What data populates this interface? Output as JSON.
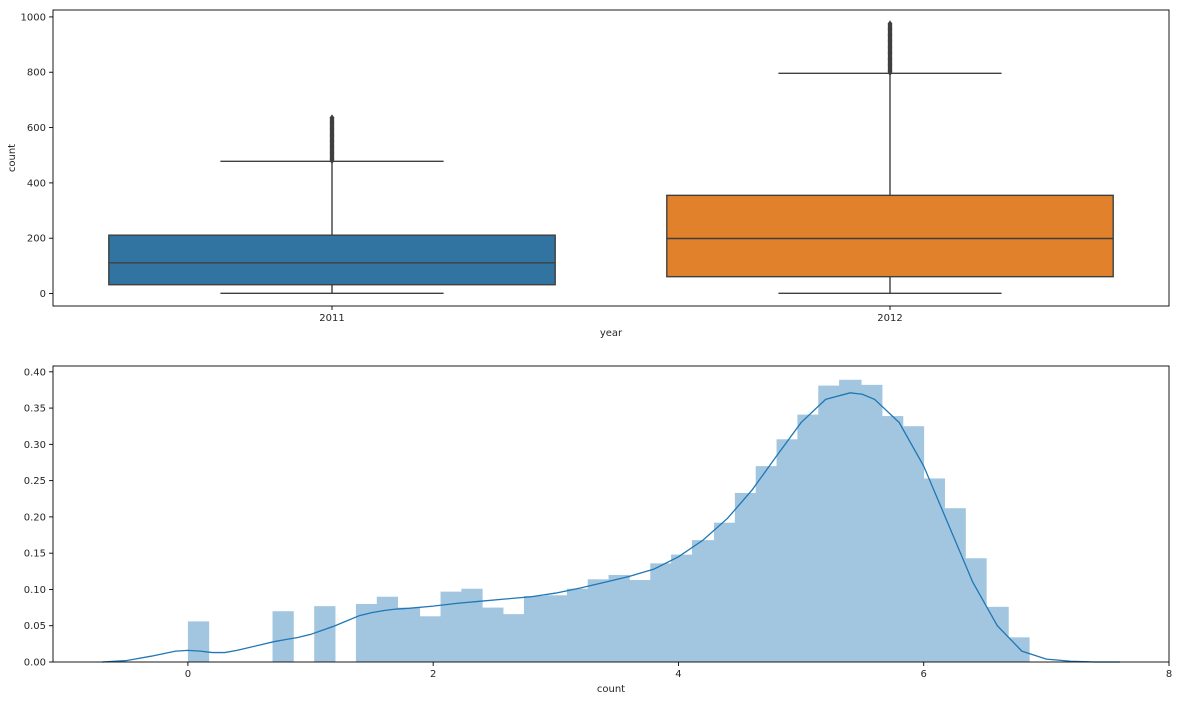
{
  "chart_data": [
    {
      "type": "box",
      "xlabel": "year",
      "ylabel": "count",
      "ylim": [
        -45,
        1025
      ],
      "yticks": [
        0,
        200,
        400,
        600,
        800,
        1000
      ],
      "categories": [
        "2011",
        "2012"
      ],
      "boxes": [
        {
          "category": "2011",
          "whisker_low": 1,
          "q1": 32,
          "median": 111,
          "q3": 211,
          "whisker_high": 478,
          "outliers_from": 480,
          "outliers_to": 638,
          "color": "#3274a1"
        },
        {
          "category": "2012",
          "whisker_low": 1,
          "q1": 61,
          "median": 199,
          "q3": 355,
          "whisker_high": 796,
          "outliers_from": 798,
          "outliers_to": 977,
          "color": "#e1812c"
        }
      ],
      "grid": false
    },
    {
      "type": "histogram",
      "xlabel": "count",
      "xlim": [
        -1.1,
        8.0
      ],
      "ylim": [
        0,
        0.408
      ],
      "xticks": [
        0,
        2,
        4,
        6,
        8
      ],
      "yticks": [
        0.0,
        0.05,
        0.1,
        0.15,
        0.2,
        0.25,
        0.3,
        0.35,
        0.4
      ],
      "bar_color": "#a3c6e0",
      "line_color": "#1f77b4",
      "bins": [
        {
          "x0": 0.0,
          "x1": 0.17,
          "density": 0.056
        },
        {
          "x0": 0.17,
          "x1": 0.34,
          "density": 0.0
        },
        {
          "x0": 0.34,
          "x1": 0.51,
          "density": 0.0
        },
        {
          "x0": 0.51,
          "x1": 0.69,
          "density": 0.0
        },
        {
          "x0": 0.69,
          "x1": 0.86,
          "density": 0.07
        },
        {
          "x0": 0.86,
          "x1": 1.03,
          "density": 0.0
        },
        {
          "x0": 1.03,
          "x1": 1.2,
          "density": 0.077
        },
        {
          "x0": 1.2,
          "x1": 1.37,
          "density": 0.0
        },
        {
          "x0": 1.37,
          "x1": 1.54,
          "density": 0.08
        },
        {
          "x0": 1.54,
          "x1": 1.71,
          "density": 0.09
        },
        {
          "x0": 1.71,
          "x1": 1.89,
          "density": 0.075
        },
        {
          "x0": 1.89,
          "x1": 2.06,
          "density": 0.063
        },
        {
          "x0": 2.06,
          "x1": 2.23,
          "density": 0.097
        },
        {
          "x0": 2.23,
          "x1": 2.4,
          "density": 0.101
        },
        {
          "x0": 2.4,
          "x1": 2.57,
          "density": 0.075
        },
        {
          "x0": 2.57,
          "x1": 2.74,
          "density": 0.066
        },
        {
          "x0": 2.74,
          "x1": 2.91,
          "density": 0.091
        },
        {
          "x0": 2.91,
          "x1": 3.09,
          "density": 0.092
        },
        {
          "x0": 3.09,
          "x1": 3.26,
          "density": 0.101
        },
        {
          "x0": 3.26,
          "x1": 3.43,
          "density": 0.114
        },
        {
          "x0": 3.43,
          "x1": 3.6,
          "density": 0.12
        },
        {
          "x0": 3.6,
          "x1": 3.77,
          "density": 0.113
        },
        {
          "x0": 3.77,
          "x1": 3.94,
          "density": 0.136
        },
        {
          "x0": 3.94,
          "x1": 4.11,
          "density": 0.148
        },
        {
          "x0": 4.11,
          "x1": 4.29,
          "density": 0.168
        },
        {
          "x0": 4.29,
          "x1": 4.46,
          "density": 0.192
        },
        {
          "x0": 4.46,
          "x1": 4.63,
          "density": 0.233
        },
        {
          "x0": 4.63,
          "x1": 4.8,
          "density": 0.27
        },
        {
          "x0": 4.8,
          "x1": 4.97,
          "density": 0.307
        },
        {
          "x0": 4.97,
          "x1": 5.14,
          "density": 0.341
        },
        {
          "x0": 5.14,
          "x1": 5.31,
          "density": 0.381
        },
        {
          "x0": 5.31,
          "x1": 5.49,
          "density": 0.389
        },
        {
          "x0": 5.49,
          "x1": 5.66,
          "density": 0.382
        },
        {
          "x0": 5.66,
          "x1": 5.83,
          "density": 0.339
        },
        {
          "x0": 5.83,
          "x1": 6.0,
          "density": 0.325
        },
        {
          "x0": 6.0,
          "x1": 6.17,
          "density": 0.253
        },
        {
          "x0": 6.17,
          "x1": 6.34,
          "density": 0.212
        },
        {
          "x0": 6.34,
          "x1": 6.51,
          "density": 0.143
        },
        {
          "x0": 6.51,
          "x1": 6.69,
          "density": 0.076
        },
        {
          "x0": 6.69,
          "x1": 6.86,
          "density": 0.034
        }
      ],
      "kde": {
        "x": [
          -0.7,
          -0.5,
          -0.3,
          -0.1,
          0.0,
          0.1,
          0.2,
          0.3,
          0.4,
          0.5,
          0.6,
          0.7,
          0.8,
          0.9,
          1.0,
          1.1,
          1.2,
          1.3,
          1.4,
          1.5,
          1.6,
          1.7,
          1.8,
          2.0,
          2.2,
          2.4,
          2.6,
          2.8,
          3.0,
          3.2,
          3.4,
          3.6,
          3.8,
          4.0,
          4.2,
          4.4,
          4.6,
          4.8,
          5.0,
          5.2,
          5.4,
          5.5,
          5.6,
          5.8,
          6.0,
          6.2,
          6.4,
          6.6,
          6.8,
          7.0,
          7.2,
          7.4,
          7.6
        ],
        "y": [
          0.0,
          0.002,
          0.008,
          0.015,
          0.016,
          0.015,
          0.013,
          0.013,
          0.016,
          0.02,
          0.024,
          0.028,
          0.031,
          0.034,
          0.038,
          0.044,
          0.05,
          0.057,
          0.064,
          0.068,
          0.071,
          0.073,
          0.074,
          0.077,
          0.081,
          0.084,
          0.087,
          0.09,
          0.095,
          0.102,
          0.11,
          0.118,
          0.128,
          0.145,
          0.168,
          0.198,
          0.237,
          0.284,
          0.33,
          0.362,
          0.371,
          0.369,
          0.362,
          0.33,
          0.27,
          0.19,
          0.11,
          0.05,
          0.015,
          0.004,
          0.001,
          0.0,
          0.0
        ]
      },
      "grid": false
    }
  ]
}
